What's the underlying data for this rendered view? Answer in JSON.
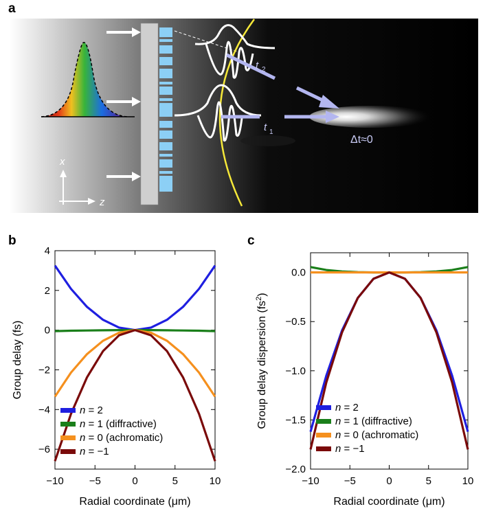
{
  "figure": {
    "panel_labels": [
      "a",
      "b",
      "c"
    ],
    "schematic": {
      "axis_x_label": "x",
      "axis_z_label": "z",
      "label_t2": "t",
      "label_t2_sub": "2",
      "label_t1": "t",
      "label_t1_sub": "1",
      "label_dt": "Δt≈0",
      "colors": {
        "background": "#000000",
        "arrow": "#b3b6f0",
        "wavefront": "#f5e839",
        "pillar": "#8ccff5",
        "substrate": "#cfcfcf"
      }
    }
  },
  "chart_data": [
    {
      "type": "line",
      "panel": "b",
      "xlabel": "Radial coordinate (μm)",
      "ylabel": "Group delay (fs)",
      "xlim": [
        -10,
        10
      ],
      "ylim": [
        -7,
        4
      ],
      "xticks": [
        -10,
        -5,
        0,
        5,
        10
      ],
      "xtick_labels": [
        "−10",
        "−5",
        "0",
        "5",
        "10"
      ],
      "yticks": [
        4,
        2,
        0,
        -2,
        -4,
        -6
      ],
      "ytick_labels": [
        "4",
        "2",
        "0",
        "−2",
        "−4",
        "−6"
      ],
      "grid": false,
      "legend_position": "bottom-left",
      "x": [
        -10,
        -8,
        -6,
        -4,
        -2,
        0,
        2,
        4,
        6,
        8,
        10
      ],
      "series": [
        {
          "name": "n = 2",
          "legend_n": "n",
          "legend_rest": " = 2",
          "color": "#1f1fe0",
          "values": [
            3.25,
            2.08,
            1.17,
            0.52,
            0.13,
            0,
            0.13,
            0.52,
            1.17,
            2.08,
            3.25
          ]
        },
        {
          "name": "n = 1 (diffractive)",
          "legend_n": "n",
          "legend_rest": " = 1 (diffractive)",
          "color": "#1a7f1a",
          "values": [
            -0.05,
            -0.03,
            -0.02,
            -0.01,
            0,
            0,
            0,
            -0.01,
            -0.02,
            -0.03,
            -0.05
          ]
        },
        {
          "name": "n = 0 (achromatic)",
          "legend_n": "n",
          "legend_rest": " = 0 (achromatic)",
          "color": "#f5901e",
          "values": [
            -3.35,
            -2.14,
            -1.21,
            -0.54,
            -0.13,
            0,
            -0.13,
            -0.54,
            -1.21,
            -2.14,
            -3.35
          ]
        },
        {
          "name": "n = −1",
          "legend_n": "n",
          "legend_rest": " = −1",
          "color": "#7a0a0a",
          "values": [
            -6.6,
            -4.22,
            -2.38,
            -1.06,
            -0.26,
            0,
            -0.26,
            -1.06,
            -2.38,
            -4.22,
            -6.6
          ]
        }
      ]
    },
    {
      "type": "line",
      "panel": "c",
      "xlabel": "Radial coordinate (μm)",
      "ylabel": "Group delay dispersion (fs",
      "ylabel_sup": "2",
      "ylabel_end": ")",
      "xlim": [
        -10,
        10
      ],
      "ylim": [
        -2.0,
        0.2
      ],
      "xticks": [
        -10,
        -5,
        0,
        5,
        10
      ],
      "xtick_labels": [
        "−10",
        "−5",
        "0",
        "5",
        "10"
      ],
      "yticks": [
        0.0,
        -0.5,
        -1.0,
        -1.5,
        -2.0
      ],
      "ytick_labels": [
        "0.0",
        "−0.5",
        "−1.0",
        "−1.5",
        "−2.0"
      ],
      "grid": false,
      "legend_position": "bottom-left",
      "x": [
        -10,
        -8,
        -6,
        -4,
        -2,
        0,
        2,
        4,
        6,
        8,
        10
      ],
      "series": [
        {
          "name": "n = 2",
          "legend_n": "n",
          "legend_rest": " = 2",
          "color": "#1f1fe0",
          "values": [
            -1.62,
            -1.05,
            -0.59,
            -0.26,
            -0.065,
            0,
            -0.065,
            -0.26,
            -0.59,
            -1.05,
            -1.62
          ]
        },
        {
          "name": "n = 1 (diffractive)",
          "legend_n": "n",
          "legend_rest": " = 1 (diffractive)",
          "color": "#1a7f1a",
          "values": [
            0.055,
            0.025,
            0.01,
            0.003,
            0,
            0,
            0,
            0.003,
            0.01,
            0.025,
            0.055
          ]
        },
        {
          "name": "n = 0 (achromatic)",
          "legend_n": "n",
          "legend_rest": " = 0 (achromatic)",
          "color": "#f5901e",
          "values": [
            0,
            0,
            0,
            0,
            0,
            0,
            0,
            0,
            0,
            0,
            0
          ]
        },
        {
          "name": "n = −1",
          "legend_n": "n",
          "legend_rest": " = −1",
          "color": "#7a0a0a",
          "values": [
            -1.8,
            -1.12,
            -0.61,
            -0.26,
            -0.065,
            0,
            -0.065,
            -0.26,
            -0.61,
            -1.12,
            -1.8
          ]
        }
      ]
    }
  ]
}
